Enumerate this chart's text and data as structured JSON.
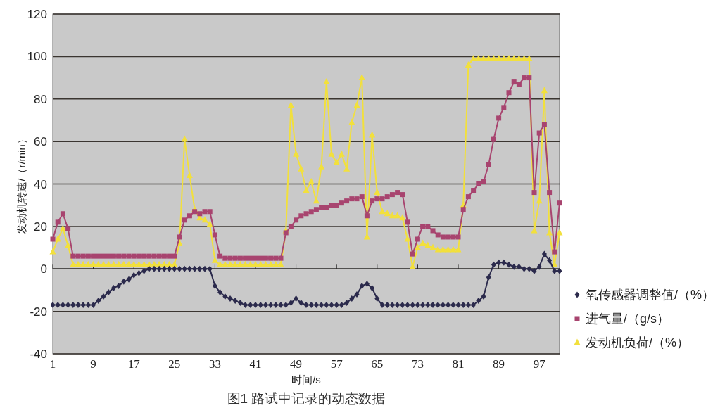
{
  "chart_data": {
    "type": "line",
    "title": "图1 路试中记录的动态数据",
    "xlabel": "时间/s",
    "ylabel": "发动机转速/（r/min）",
    "xlim": [
      1,
      101
    ],
    "ylim": [
      -40,
      120
    ],
    "xticks": [
      1,
      9,
      17,
      25,
      33,
      41,
      49,
      57,
      65,
      73,
      81,
      89,
      97
    ],
    "yticks": [
      -40,
      -20,
      0,
      20,
      40,
      60,
      80,
      100,
      120
    ],
    "grid": "y",
    "legend": "right",
    "x": [
      1,
      2,
      3,
      4,
      5,
      6,
      7,
      8,
      9,
      10,
      11,
      12,
      13,
      14,
      15,
      16,
      17,
      18,
      19,
      20,
      21,
      22,
      23,
      24,
      25,
      26,
      27,
      28,
      29,
      30,
      31,
      32,
      33,
      34,
      35,
      36,
      37,
      38,
      39,
      40,
      41,
      42,
      43,
      44,
      45,
      46,
      47,
      48,
      49,
      50,
      51,
      52,
      53,
      54,
      55,
      56,
      57,
      58,
      59,
      60,
      61,
      62,
      63,
      64,
      65,
      66,
      67,
      68,
      69,
      70,
      71,
      72,
      73,
      74,
      75,
      76,
      77,
      78,
      79,
      80,
      81,
      82,
      83,
      84,
      85,
      86,
      87,
      88,
      89,
      90,
      91,
      92,
      93,
      94,
      95,
      96,
      97,
      98,
      99,
      100,
      101
    ],
    "series": [
      {
        "name": "氧传感器调整值/（%）",
        "color": "#2b2a4c",
        "marker": "diamond",
        "values": [
          -17,
          -17,
          -17,
          -17,
          -17,
          -17,
          -17,
          -17,
          -17,
          -15,
          -13,
          -11,
          -9,
          -8,
          -6,
          -5,
          -3,
          -2,
          -1,
          0,
          0,
          0,
          0,
          0,
          0,
          0,
          0,
          0,
          0,
          0,
          0,
          0,
          -8,
          -11,
          -13,
          -14,
          -15,
          -16,
          -17,
          -17,
          -17,
          -17,
          -17,
          -17,
          -17,
          -17,
          -17,
          -16,
          -14,
          -16,
          -17,
          -17,
          -17,
          -17,
          -17,
          -17,
          -17,
          -17,
          -16,
          -14,
          -12,
          -8,
          -7,
          -9,
          -14,
          -17,
          -17,
          -17,
          -17,
          -17,
          -17,
          -17,
          -17,
          -17,
          -17,
          -17,
          -17,
          -17,
          -17,
          -17,
          -17,
          -17,
          -17,
          -17,
          -15,
          -13,
          -4,
          2,
          3,
          3,
          2,
          1,
          1,
          0,
          0,
          -1,
          1,
          7,
          4,
          -1,
          -1
        ]
      },
      {
        "name": "进气量/（g/s）",
        "color": "#a8446f",
        "marker": "square",
        "values": [
          14,
          22,
          26,
          19,
          6,
          6,
          6,
          6,
          6,
          6,
          6,
          6,
          6,
          6,
          6,
          6,
          6,
          6,
          6,
          6,
          6,
          6,
          6,
          6,
          6,
          15,
          23,
          25,
          27,
          26,
          27,
          27,
          16,
          6,
          5,
          5,
          5,
          5,
          5,
          5,
          5,
          5,
          5,
          5,
          5,
          5,
          17,
          20,
          23,
          25,
          26,
          27,
          28,
          29,
          29,
          30,
          30,
          31,
          32,
          33,
          33,
          34,
          25,
          32,
          33,
          33,
          34,
          35,
          36,
          35,
          22,
          7,
          14,
          20,
          20,
          18,
          16,
          15,
          15,
          15,
          15,
          28,
          34,
          37,
          40,
          41,
          49,
          61,
          71,
          76,
          83,
          88,
          87,
          90,
          90,
          36,
          64,
          68,
          36,
          8,
          31
        ]
      },
      {
        "name": "发动机负荷/（%）",
        "color": "#f2e03c",
        "marker": "triangle",
        "values": [
          8,
          14,
          19,
          11,
          2,
          2,
          2,
          2,
          2,
          2,
          2,
          2,
          2,
          2,
          2,
          2,
          2,
          2,
          2,
          2,
          2,
          2,
          2,
          2,
          2,
          12,
          61,
          44,
          28,
          24,
          23,
          21,
          4,
          2,
          2,
          2,
          2,
          2,
          2,
          2,
          2,
          2,
          2,
          2,
          2,
          2,
          18,
          77,
          54,
          47,
          37,
          41,
          32,
          48,
          88,
          54,
          50,
          54,
          47,
          69,
          77,
          90,
          15,
          63,
          36,
          27,
          26,
          25,
          25,
          24,
          14,
          1,
          10,
          12,
          11,
          10,
          9,
          9,
          9,
          9,
          9,
          30,
          96,
          99,
          99,
          99,
          99,
          99,
          99,
          99,
          99,
          99,
          99,
          99,
          99,
          18,
          32,
          84,
          17,
          2,
          17
        ]
      }
    ]
  }
}
